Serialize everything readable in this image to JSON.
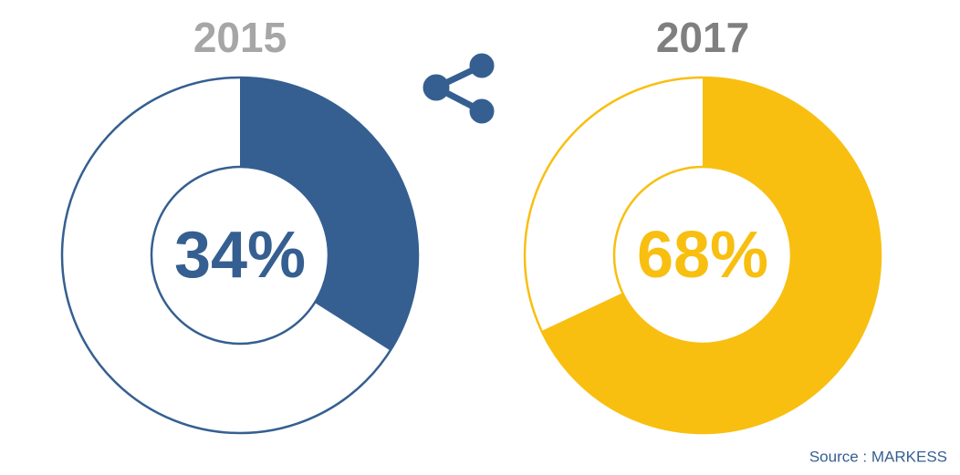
{
  "chart_data": [
    {
      "type": "donut",
      "title": "2015",
      "title_color": "#a6a6a6",
      "values": [
        34
      ],
      "value_labels": [
        "34%"
      ],
      "color": "#355f91"
    },
    {
      "type": "donut",
      "title": "2017",
      "title_color": "#7f7f7f",
      "values": [
        68
      ],
      "value_labels": [
        "68%"
      ],
      "color": "#f8bf11"
    }
  ],
  "source": "Source : MARKESS"
}
